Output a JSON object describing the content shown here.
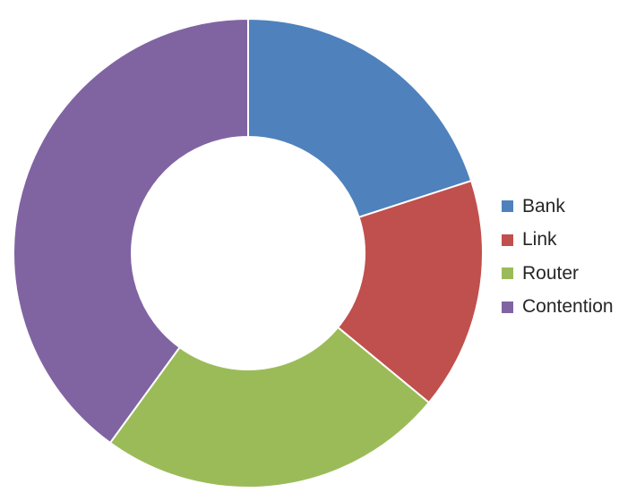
{
  "chart_data": {
    "type": "pie",
    "variant": "donut",
    "title": "",
    "series": [
      {
        "name": "Bank",
        "value": 20,
        "color": "#4F81BD"
      },
      {
        "name": "Link",
        "value": 16,
        "color": "#C0504D"
      },
      {
        "name": "Router",
        "value": 24,
        "color": "#9BBB59"
      },
      {
        "name": "Contention",
        "value": 40,
        "color": "#8064A2"
      }
    ],
    "legend_position": "right"
  }
}
